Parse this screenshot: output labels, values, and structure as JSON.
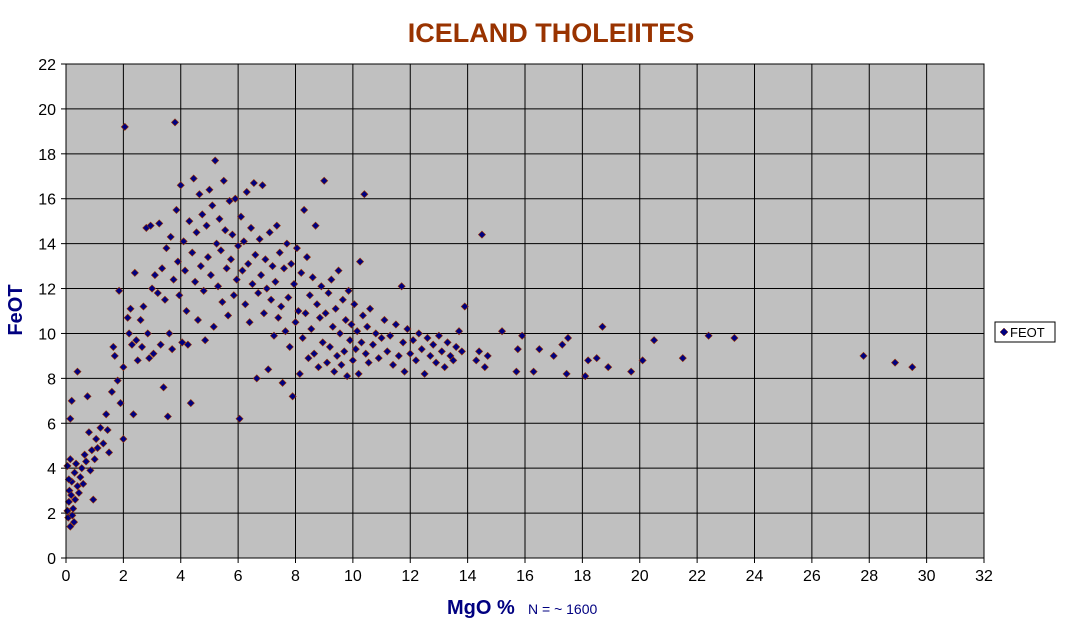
{
  "chart_data": {
    "type": "scatter",
    "title": "ICELAND THOLEIITES",
    "xlabel": "MgO %",
    "ylabel": "FeOT",
    "annotation": "N = ~ 1600",
    "xlim": [
      0,
      32
    ],
    "ylim": [
      0,
      22
    ],
    "xticks": [
      0,
      2,
      4,
      6,
      8,
      10,
      12,
      14,
      16,
      18,
      20,
      22,
      24,
      26,
      28,
      30,
      32
    ],
    "yticks": [
      0,
      2,
      4,
      6,
      8,
      10,
      12,
      14,
      16,
      18,
      20,
      22
    ],
    "grid": true,
    "legend_position": "right",
    "colors": {
      "plot_bg": "#c0c0c0",
      "marker_fill": "#000080",
      "marker_edge": "#993300",
      "title": "#993300",
      "axis_label": "#000080"
    },
    "series": [
      {
        "name": "FEOT",
        "points": [
          [
            0.05,
            2.1
          ],
          [
            0.08,
            1.8
          ],
          [
            0.1,
            2.5
          ],
          [
            0.12,
            3.0
          ],
          [
            0.15,
            1.4
          ],
          [
            0.18,
            2.8
          ],
          [
            0.2,
            3.4
          ],
          [
            0.22,
            1.9
          ],
          [
            0.25,
            2.2
          ],
          [
            0.28,
            1.6
          ],
          [
            0.3,
            3.8
          ],
          [
            0.32,
            2.6
          ],
          [
            0.35,
            4.2
          ],
          [
            0.05,
            4.1
          ],
          [
            0.1,
            3.5
          ],
          [
            0.15,
            4.4
          ],
          [
            0.2,
            7.0
          ],
          [
            0.15,
            6.2
          ],
          [
            0.4,
            8.3
          ],
          [
            0.4,
            3.2
          ],
          [
            0.45,
            2.9
          ],
          [
            0.5,
            3.6
          ],
          [
            0.55,
            4.0
          ],
          [
            0.6,
            3.3
          ],
          [
            0.65,
            4.6
          ],
          [
            0.7,
            4.3
          ],
          [
            0.75,
            7.2
          ],
          [
            0.8,
            5.6
          ],
          [
            0.85,
            3.9
          ],
          [
            0.9,
            4.8
          ],
          [
            0.95,
            2.6
          ],
          [
            1.0,
            4.4
          ],
          [
            1.05,
            5.3
          ],
          [
            1.1,
            4.9
          ],
          [
            1.2,
            5.8
          ],
          [
            1.3,
            5.1
          ],
          [
            1.4,
            6.4
          ],
          [
            1.45,
            5.7
          ],
          [
            1.5,
            4.7
          ],
          [
            1.6,
            7.4
          ],
          [
            1.65,
            9.4
          ],
          [
            1.7,
            9.0
          ],
          [
            1.8,
            7.9
          ],
          [
            1.85,
            11.9
          ],
          [
            1.9,
            6.9
          ],
          [
            2.0,
            8.5
          ],
          [
            2.0,
            5.3
          ],
          [
            2.05,
            19.2
          ],
          [
            2.15,
            10.7
          ],
          [
            2.2,
            10.0
          ],
          [
            2.25,
            11.1
          ],
          [
            2.3,
            9.5
          ],
          [
            2.35,
            6.4
          ],
          [
            2.4,
            12.7
          ],
          [
            2.45,
            9.7
          ],
          [
            2.5,
            8.8
          ],
          [
            2.6,
            10.6
          ],
          [
            2.65,
            9.4
          ],
          [
            2.7,
            11.2
          ],
          [
            2.8,
            14.7
          ],
          [
            2.85,
            10.0
          ],
          [
            2.9,
            8.9
          ],
          [
            2.95,
            14.8
          ],
          [
            3.0,
            12.0
          ],
          [
            3.05,
            9.1
          ],
          [
            3.1,
            12.6
          ],
          [
            3.2,
            11.8
          ],
          [
            3.25,
            14.9
          ],
          [
            3.3,
            9.5
          ],
          [
            3.35,
            12.9
          ],
          [
            3.4,
            7.6
          ],
          [
            3.45,
            11.5
          ],
          [
            3.5,
            13.8
          ],
          [
            3.55,
            6.3
          ],
          [
            3.6,
            10.0
          ],
          [
            3.65,
            14.3
          ],
          [
            3.7,
            9.3
          ],
          [
            3.75,
            12.4
          ],
          [
            3.8,
            19.4
          ],
          [
            3.85,
            15.5
          ],
          [
            3.9,
            13.2
          ],
          [
            3.95,
            11.7
          ],
          [
            4.0,
            16.6
          ],
          [
            4.05,
            9.6
          ],
          [
            4.1,
            14.1
          ],
          [
            4.15,
            12.8
          ],
          [
            4.2,
            11.0
          ],
          [
            4.25,
            9.5
          ],
          [
            4.3,
            15.0
          ],
          [
            4.35,
            6.9
          ],
          [
            4.4,
            13.6
          ],
          [
            4.45,
            16.9
          ],
          [
            4.5,
            12.3
          ],
          [
            4.55,
            14.5
          ],
          [
            4.6,
            10.6
          ],
          [
            4.65,
            16.2
          ],
          [
            4.7,
            13.0
          ],
          [
            4.75,
            15.3
          ],
          [
            4.8,
            11.9
          ],
          [
            4.85,
            9.7
          ],
          [
            4.9,
            14.8
          ],
          [
            4.95,
            13.4
          ],
          [
            5.0,
            16.4
          ],
          [
            5.05,
            12.6
          ],
          [
            5.1,
            15.7
          ],
          [
            5.15,
            10.3
          ],
          [
            5.2,
            17.7
          ],
          [
            5.25,
            14.0
          ],
          [
            5.3,
            12.1
          ],
          [
            5.35,
            15.1
          ],
          [
            5.4,
            13.7
          ],
          [
            5.45,
            11.4
          ],
          [
            5.5,
            16.8
          ],
          [
            5.55,
            14.6
          ],
          [
            5.6,
            12.9
          ],
          [
            5.65,
            10.8
          ],
          [
            5.7,
            15.9
          ],
          [
            5.75,
            13.3
          ],
          [
            5.8,
            14.4
          ],
          [
            5.85,
            11.7
          ],
          [
            5.9,
            16.0
          ],
          [
            5.95,
            12.4
          ],
          [
            6.0,
            13.9
          ],
          [
            6.05,
            6.2
          ],
          [
            6.1,
            15.2
          ],
          [
            6.15,
            12.8
          ],
          [
            6.2,
            14.1
          ],
          [
            6.25,
            11.3
          ],
          [
            6.3,
            16.3
          ],
          [
            6.35,
            13.1
          ],
          [
            6.4,
            10.5
          ],
          [
            6.45,
            14.7
          ],
          [
            6.5,
            12.2
          ],
          [
            6.55,
            16.7
          ],
          [
            6.6,
            13.5
          ],
          [
            6.65,
            8.0
          ],
          [
            6.7,
            11.8
          ],
          [
            6.75,
            14.2
          ],
          [
            6.8,
            12.6
          ],
          [
            6.85,
            16.6
          ],
          [
            6.9,
            10.9
          ],
          [
            6.95,
            13.3
          ],
          [
            7.0,
            12.0
          ],
          [
            7.05,
            8.4
          ],
          [
            7.1,
            14.5
          ],
          [
            7.15,
            11.5
          ],
          [
            7.2,
            13.0
          ],
          [
            7.25,
            9.9
          ],
          [
            7.3,
            12.3
          ],
          [
            7.35,
            14.8
          ],
          [
            7.4,
            10.7
          ],
          [
            7.45,
            13.6
          ],
          [
            7.5,
            11.2
          ],
          [
            7.55,
            7.8
          ],
          [
            7.6,
            12.9
          ],
          [
            7.65,
            10.1
          ],
          [
            7.7,
            14.0
          ],
          [
            7.75,
            11.6
          ],
          [
            7.8,
            9.4
          ],
          [
            7.85,
            13.1
          ],
          [
            7.9,
            7.2
          ],
          [
            7.95,
            12.2
          ],
          [
            8.0,
            10.5
          ],
          [
            8.05,
            13.8
          ],
          [
            8.1,
            11.0
          ],
          [
            8.15,
            8.2
          ],
          [
            8.2,
            12.7
          ],
          [
            8.25,
            9.8
          ],
          [
            8.3,
            15.5
          ],
          [
            8.35,
            10.9
          ],
          [
            8.4,
            13.4
          ],
          [
            8.45,
            8.9
          ],
          [
            8.5,
            11.7
          ],
          [
            8.55,
            10.2
          ],
          [
            8.6,
            12.5
          ],
          [
            8.65,
            9.1
          ],
          [
            8.7,
            14.8
          ],
          [
            8.75,
            11.3
          ],
          [
            8.8,
            8.5
          ],
          [
            8.85,
            10.7
          ],
          [
            8.9,
            12.1
          ],
          [
            8.95,
            9.6
          ],
          [
            9.0,
            16.8
          ],
          [
            9.05,
            10.9
          ],
          [
            9.1,
            8.7
          ],
          [
            9.15,
            11.8
          ],
          [
            9.2,
            9.4
          ],
          [
            9.25,
            12.4
          ],
          [
            9.3,
            10.3
          ],
          [
            9.35,
            8.3
          ],
          [
            9.4,
            11.1
          ],
          [
            9.45,
            9.0
          ],
          [
            9.5,
            12.8
          ],
          [
            9.55,
            10.0
          ],
          [
            9.6,
            8.6
          ],
          [
            9.65,
            11.5
          ],
          [
            9.7,
            9.2
          ],
          [
            9.75,
            10.6
          ],
          [
            9.8,
            8.1
          ],
          [
            9.85,
            11.9
          ],
          [
            9.9,
            9.7
          ],
          [
            9.95,
            10.4
          ],
          [
            10.0,
            8.8
          ],
          [
            10.05,
            11.3
          ],
          [
            10.1,
            9.3
          ],
          [
            10.15,
            10.1
          ],
          [
            10.2,
            8.2
          ],
          [
            10.25,
            13.2
          ],
          [
            10.3,
            9.6
          ],
          [
            10.35,
            10.8
          ],
          [
            10.4,
            16.2
          ],
          [
            10.45,
            9.1
          ],
          [
            10.5,
            10.3
          ],
          [
            10.55,
            8.7
          ],
          [
            10.6,
            11.1
          ],
          [
            10.7,
            9.5
          ],
          [
            10.8,
            10.0
          ],
          [
            10.9,
            8.9
          ],
          [
            11.0,
            9.8
          ],
          [
            11.1,
            10.6
          ],
          [
            11.2,
            9.2
          ],
          [
            11.3,
            9.9
          ],
          [
            11.4,
            8.6
          ],
          [
            11.5,
            10.4
          ],
          [
            11.6,
            9.0
          ],
          [
            11.7,
            12.1
          ],
          [
            11.75,
            9.6
          ],
          [
            11.8,
            8.3
          ],
          [
            11.9,
            10.2
          ],
          [
            12.0,
            9.1
          ],
          [
            12.1,
            9.7
          ],
          [
            12.2,
            8.8
          ],
          [
            12.3,
            10.0
          ],
          [
            12.4,
            9.3
          ],
          [
            12.5,
            8.2
          ],
          [
            12.6,
            9.8
          ],
          [
            12.7,
            9.0
          ],
          [
            12.8,
            9.5
          ],
          [
            12.9,
            8.7
          ],
          [
            13.0,
            9.9
          ],
          [
            13.1,
            9.2
          ],
          [
            13.2,
            8.5
          ],
          [
            13.3,
            9.6
          ],
          [
            13.4,
            9.0
          ],
          [
            13.5,
            8.8
          ],
          [
            13.6,
            9.4
          ],
          [
            13.7,
            10.1
          ],
          [
            13.8,
            9.2
          ],
          [
            13.9,
            11.2
          ],
          [
            14.3,
            8.8
          ],
          [
            14.4,
            9.2
          ],
          [
            14.5,
            14.4
          ],
          [
            14.6,
            8.5
          ],
          [
            14.7,
            9.0
          ],
          [
            15.2,
            10.1
          ],
          [
            15.7,
            8.3
          ],
          [
            15.75,
            9.3
          ],
          [
            15.9,
            9.9
          ],
          [
            16.3,
            8.3
          ],
          [
            16.5,
            9.3
          ],
          [
            17.0,
            9.0
          ],
          [
            17.3,
            9.5
          ],
          [
            17.45,
            8.2
          ],
          [
            17.5,
            9.8
          ],
          [
            18.1,
            8.1
          ],
          [
            18.2,
            8.8
          ],
          [
            18.5,
            8.9
          ],
          [
            18.7,
            10.3
          ],
          [
            18.9,
            8.5
          ],
          [
            19.7,
            8.3
          ],
          [
            20.1,
            8.8
          ],
          [
            20.5,
            9.7
          ],
          [
            21.5,
            8.9
          ],
          [
            22.4,
            9.9
          ],
          [
            23.3,
            9.8
          ],
          [
            27.8,
            9.0
          ],
          [
            28.9,
            8.7
          ],
          [
            29.5,
            8.5
          ]
        ]
      }
    ]
  }
}
